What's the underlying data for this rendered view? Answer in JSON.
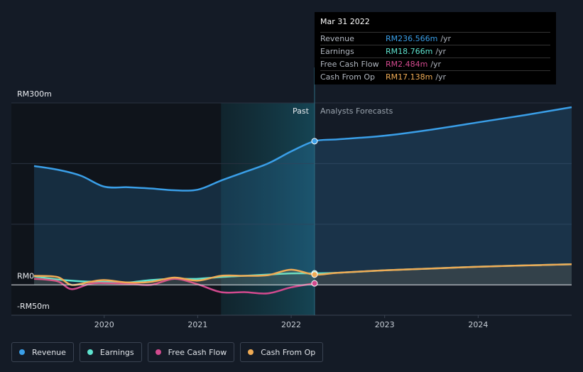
{
  "tooltip": {
    "date": "Mar 31 2022",
    "rows": [
      {
        "label": "Revenue",
        "value": "RM236.566m",
        "unit": "/yr",
        "color": "#3a9fe8"
      },
      {
        "label": "Earnings",
        "value": "RM18.766m",
        "unit": "/yr",
        "color": "#5ee3cf"
      },
      {
        "label": "Free Cash Flow",
        "value": "RM2.484m",
        "unit": "/yr",
        "color": "#d24a8e"
      },
      {
        "label": "Cash From Op",
        "value": "RM17.138m",
        "unit": "/yr",
        "color": "#efab55"
      }
    ]
  },
  "legend": [
    {
      "label": "Revenue",
      "color": "#3a9fe8"
    },
    {
      "label": "Earnings",
      "color": "#5ee3cf"
    },
    {
      "label": "Free Cash Flow",
      "color": "#d24a8e"
    },
    {
      "label": "Cash From Op",
      "color": "#efab55"
    }
  ],
  "chart_data": {
    "type": "line",
    "title": "",
    "xlabel": "",
    "ylabel": "",
    "ylim": [
      -50,
      300
    ],
    "xlim": [
      2019.25,
      2025.0
    ],
    "y_tick_labels": [
      {
        "value": 300,
        "label": "RM300m"
      },
      {
        "value": 0,
        "label": "RM0"
      },
      {
        "value": -50,
        "label": "-RM50m"
      }
    ],
    "x_ticks": [
      {
        "value": 2020,
        "label": "2020"
      },
      {
        "value": 2021,
        "label": "2021"
      },
      {
        "value": 2022,
        "label": "2022"
      },
      {
        "value": 2023,
        "label": "2023"
      },
      {
        "value": 2024,
        "label": "2024"
      }
    ],
    "past_label": "Past",
    "forecast_label": "Analysts Forecasts",
    "divider_x": 2022.25,
    "highlight_start_x": 2021.25,
    "series": [
      {
        "name": "Revenue",
        "color": "#3a9fe8",
        "fill": true,
        "points": [
          [
            2019.25,
            196
          ],
          [
            2019.5,
            190
          ],
          [
            2019.75,
            180
          ],
          [
            2020.0,
            162
          ],
          [
            2020.25,
            161
          ],
          [
            2020.5,
            159
          ],
          [
            2020.75,
            156
          ],
          [
            2021.0,
            157
          ],
          [
            2021.25,
            172
          ],
          [
            2021.5,
            186
          ],
          [
            2021.75,
            200
          ],
          [
            2022.0,
            220
          ],
          [
            2022.25,
            237
          ],
          [
            2022.5,
            240
          ],
          [
            2023.0,
            246
          ],
          [
            2023.5,
            256
          ],
          [
            2024.0,
            268
          ],
          [
            2024.5,
            280
          ],
          [
            2025.0,
            293
          ]
        ]
      },
      {
        "name": "Earnings",
        "color": "#5ee3cf",
        "fill": false,
        "points": [
          [
            2019.25,
            14
          ],
          [
            2019.5,
            9
          ],
          [
            2019.75,
            6
          ],
          [
            2020.0,
            5
          ],
          [
            2020.25,
            4
          ],
          [
            2020.5,
            8
          ],
          [
            2020.75,
            10
          ],
          [
            2021.0,
            10
          ],
          [
            2021.25,
            13
          ],
          [
            2021.5,
            15
          ],
          [
            2021.75,
            17
          ],
          [
            2022.0,
            19
          ],
          [
            2022.25,
            19
          ],
          [
            2022.5,
            20
          ],
          [
            2023.0,
            24
          ],
          [
            2023.5,
            27
          ],
          [
            2024.0,
            30
          ],
          [
            2024.5,
            32
          ],
          [
            2025.0,
            34
          ]
        ]
      },
      {
        "name": "Free Cash Flow",
        "color": "#d24a8e",
        "fill": false,
        "points": [
          [
            2019.25,
            10
          ],
          [
            2019.5,
            6
          ],
          [
            2019.65,
            -7
          ],
          [
            2019.85,
            2
          ],
          [
            2020.0,
            3
          ],
          [
            2020.25,
            2
          ],
          [
            2020.5,
            0
          ],
          [
            2020.75,
            10
          ],
          [
            2021.0,
            1
          ],
          [
            2021.25,
            -12
          ],
          [
            2021.5,
            -12
          ],
          [
            2021.75,
            -14
          ],
          [
            2022.0,
            -4
          ],
          [
            2022.25,
            2.5
          ]
        ]
      },
      {
        "name": "Cash From Op",
        "color": "#efab55",
        "fill": true,
        "points": [
          [
            2019.25,
            15
          ],
          [
            2019.5,
            13
          ],
          [
            2019.65,
            0
          ],
          [
            2019.85,
            5
          ],
          [
            2020.0,
            8
          ],
          [
            2020.25,
            4
          ],
          [
            2020.5,
            5
          ],
          [
            2020.75,
            12
          ],
          [
            2021.0,
            7
          ],
          [
            2021.25,
            15
          ],
          [
            2021.5,
            15
          ],
          [
            2021.75,
            16
          ],
          [
            2022.0,
            25
          ],
          [
            2022.25,
            17
          ],
          [
            2022.5,
            20
          ],
          [
            2023.0,
            24
          ],
          [
            2023.5,
            27
          ],
          [
            2024.0,
            30
          ],
          [
            2024.5,
            32
          ],
          [
            2025.0,
            34
          ]
        ]
      }
    ]
  }
}
